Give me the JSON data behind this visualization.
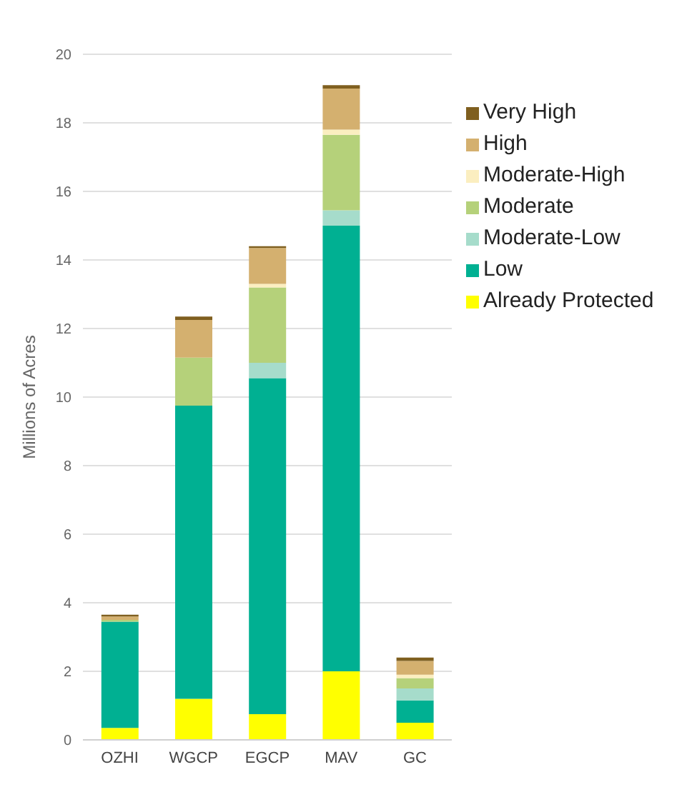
{
  "chart_data": {
    "type": "bar",
    "stacked": true,
    "ylabel": "Millions of Acres",
    "categories": [
      "OZHI",
      "WGCP",
      "EGCP",
      "MAV",
      "GC"
    ],
    "ylim": [
      0,
      20
    ],
    "yticks": [
      0,
      2,
      4,
      6,
      8,
      10,
      12,
      14,
      16,
      18,
      20
    ],
    "grid": "y",
    "legend": "top right",
    "series": [
      {
        "name": "Already Protected",
        "color": "#ffff00",
        "values": [
          0.35,
          1.2,
          0.75,
          2.0,
          0.5
        ]
      },
      {
        "name": "Low",
        "color": "#00b092",
        "values": [
          3.1,
          8.55,
          9.8,
          13.0,
          0.65
        ]
      },
      {
        "name": "Moderate-Low",
        "color": "#a6dccb",
        "values": [
          0,
          null,
          0.45,
          0.45,
          0.35
        ]
      },
      {
        "name": "Moderate",
        "color": "#b5d17a",
        "values": [
          0.05,
          1.4,
          2.2,
          2.2,
          0.3
        ]
      },
      {
        "name": "Moderate-High",
        "color": "#fbeec0",
        "values": [
          null,
          null,
          0.1,
          0.15,
          0.1
        ]
      },
      {
        "name": "High",
        "color": "#d4b06f",
        "values": [
          0.1,
          1.1,
          1.05,
          1.2,
          0.4
        ]
      },
      {
        "name": "Very High",
        "color": "#7f5f1f",
        "values": [
          0.05,
          0.1,
          0.05,
          0.1,
          0.1
        ]
      }
    ]
  }
}
